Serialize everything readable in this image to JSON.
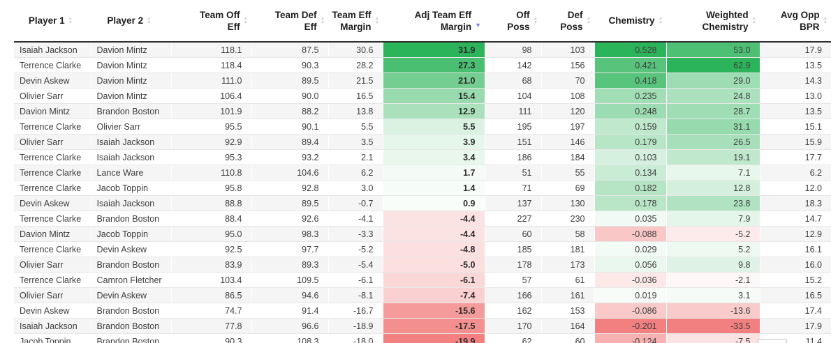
{
  "icons": {
    "sort_asc": "▲",
    "sort_desc": "▼"
  },
  "colors": {
    "positive_full": "#2cb45a",
    "negative_full": "#f38080",
    "active_sort": "#7b82e9",
    "inactive_sort": "#cccccc",
    "stripe": "#f5f5f5",
    "header_border": "#2f2f2f",
    "table_bottom_border": "#4a4a4a"
  },
  "table": {
    "columns": [
      {
        "key": "player1",
        "label_lines": [
          "Player 1"
        ],
        "align": "center",
        "type": "text"
      },
      {
        "key": "player2",
        "label_lines": [
          "Player 2"
        ],
        "align": "center",
        "type": "text"
      },
      {
        "key": "team_off_eff",
        "label_lines": [
          "Team Off",
          "Eff"
        ],
        "align": "right"
      },
      {
        "key": "team_def_eff",
        "label_lines": [
          "Team Def",
          "Eff"
        ],
        "align": "right"
      },
      {
        "key": "team_eff_margin",
        "label_lines": [
          "Team Eff",
          "Margin"
        ],
        "align": "right"
      },
      {
        "key": "adj_team_eff_margin",
        "label_lines": [
          "Adj Team Eff",
          "Margin"
        ],
        "align": "right",
        "sorted": "desc",
        "colored": true,
        "bold": true
      },
      {
        "key": "off_poss",
        "label_lines": [
          "Off",
          "Poss"
        ],
        "align": "right"
      },
      {
        "key": "def_poss",
        "label_lines": [
          "Def",
          "Poss"
        ],
        "align": "right"
      },
      {
        "key": "chemistry",
        "label_lines": [
          "Chemistry"
        ],
        "align": "right",
        "colored": true
      },
      {
        "key": "weighted_chemistry",
        "label_lines": [
          "Weighted",
          "Chemistry"
        ],
        "align": "right",
        "colored": true
      },
      {
        "key": "avg_opp_bpr",
        "label_lines": [
          "Avg Opp",
          "BPR"
        ],
        "align": "right"
      }
    ],
    "rows": [
      [
        "Isaiah Jackson",
        "Davion Mintz",
        "118.1",
        "87.5",
        "30.6",
        "31.9",
        "98",
        "103",
        "0.528",
        "53.0",
        "17.9"
      ],
      [
        "Terrence Clarke",
        "Davion Mintz",
        "118.4",
        "90.3",
        "28.2",
        "27.3",
        "142",
        "156",
        "0.421",
        "62.9",
        "13.5"
      ],
      [
        "Devin Askew",
        "Davion Mintz",
        "111.0",
        "89.5",
        "21.5",
        "21.0",
        "68",
        "70",
        "0.418",
        "29.0",
        "14.3"
      ],
      [
        "Olivier Sarr",
        "Davion Mintz",
        "106.4",
        "90.0",
        "16.5",
        "15.4",
        "104",
        "108",
        "0.235",
        "24.8",
        "13.0"
      ],
      [
        "Davion Mintz",
        "Brandon Boston",
        "101.9",
        "88.2",
        "13.8",
        "12.9",
        "111",
        "120",
        "0.248",
        "28.7",
        "13.5"
      ],
      [
        "Terrence Clarke",
        "Olivier Sarr",
        "95.5",
        "90.1",
        "5.5",
        "5.5",
        "195",
        "197",
        "0.159",
        "31.1",
        "15.1"
      ],
      [
        "Olivier Sarr",
        "Isaiah Jackson",
        "92.9",
        "89.4",
        "3.5",
        "3.9",
        "151",
        "146",
        "0.179",
        "26.5",
        "15.9"
      ],
      [
        "Terrence Clarke",
        "Isaiah Jackson",
        "95.3",
        "93.2",
        "2.1",
        "3.4",
        "186",
        "184",
        "0.103",
        "19.1",
        "17.7"
      ],
      [
        "Terrence Clarke",
        "Lance Ware",
        "110.8",
        "104.6",
        "6.2",
        "1.7",
        "51",
        "55",
        "0.134",
        "7.1",
        "6.2"
      ],
      [
        "Terrence Clarke",
        "Jacob Toppin",
        "95.8",
        "92.8",
        "3.0",
        "1.4",
        "71",
        "69",
        "0.182",
        "12.8",
        "12.0"
      ],
      [
        "Devin Askew",
        "Isaiah Jackson",
        "88.8",
        "89.5",
        "-0.7",
        "0.9",
        "137",
        "130",
        "0.178",
        "23.8",
        "18.3"
      ],
      [
        "Terrence Clarke",
        "Brandon Boston",
        "88.4",
        "92.6",
        "-4.1",
        "-4.4",
        "227",
        "230",
        "0.035",
        "7.9",
        "14.7"
      ],
      [
        "Davion Mintz",
        "Jacob Toppin",
        "95.0",
        "98.3",
        "-3.3",
        "-4.4",
        "60",
        "58",
        "-0.088",
        "-5.2",
        "12.9"
      ],
      [
        "Terrence Clarke",
        "Devin Askew",
        "92.5",
        "97.7",
        "-5.2",
        "-4.8",
        "185",
        "181",
        "0.029",
        "5.2",
        "16.1"
      ],
      [
        "Olivier Sarr",
        "Brandon Boston",
        "83.9",
        "89.3",
        "-5.4",
        "-5.0",
        "178",
        "173",
        "0.056",
        "9.8",
        "16.0"
      ],
      [
        "Terrence Clarke",
        "Camron Fletcher",
        "103.4",
        "109.5",
        "-6.1",
        "-6.1",
        "57",
        "61",
        "-0.036",
        "-2.1",
        "15.2"
      ],
      [
        "Olivier Sarr",
        "Devin Askew",
        "86.5",
        "94.6",
        "-8.1",
        "-7.4",
        "166",
        "161",
        "0.019",
        "3.1",
        "16.5"
      ],
      [
        "Devin Askew",
        "Brandon Boston",
        "74.7",
        "91.4",
        "-16.7",
        "-15.6",
        "162",
        "153",
        "-0.086",
        "-13.6",
        "17.4"
      ],
      [
        "Isaiah Jackson",
        "Brandon Boston",
        "77.8",
        "96.6",
        "-18.9",
        "-17.5",
        "170",
        "164",
        "-0.201",
        "-33.5",
        "17.9"
      ],
      [
        "Jacob Toppin",
        "Brandon Boston",
        "90.3",
        "108.3",
        "-18.0",
        "-19.9",
        "62",
        "60",
        "-0.124",
        "-7.5",
        "11.4"
      ]
    ]
  },
  "pagination": {
    "partial_button_visible": true
  }
}
